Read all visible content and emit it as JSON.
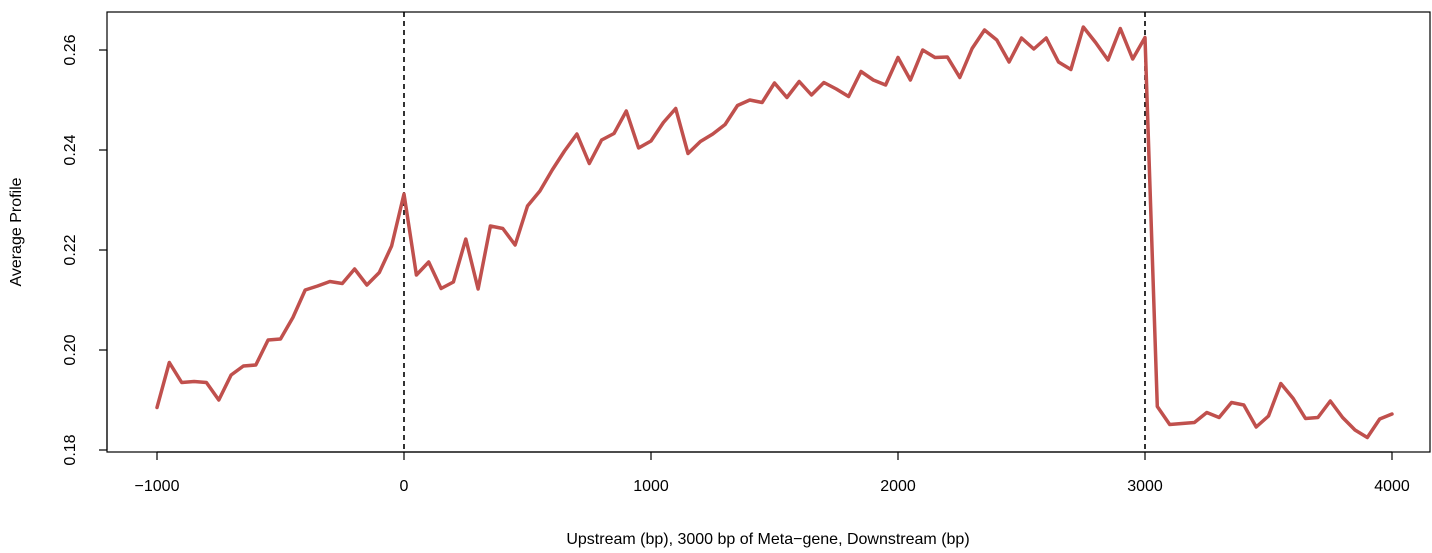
{
  "chart_data": {
    "type": "line",
    "xlabel": "Upstream (bp), 3000 bp of Meta−gene, Downstream (bp)",
    "ylabel": "Average Profile",
    "xlim": [
      -1000,
      4000
    ],
    "ylim": [
      0.18,
      0.26
    ],
    "x_ticks": [
      -1000,
      0,
      1000,
      2000,
      3000,
      4000
    ],
    "x_tick_labels": [
      "−1000",
      "0",
      "1000",
      "2000",
      "3000",
      "4000"
    ],
    "y_ticks": [
      0.18,
      0.2,
      0.22,
      0.24,
      0.26
    ],
    "y_tick_labels": [
      "0.18",
      "0.20",
      "0.22",
      "0.24",
      "0.26"
    ],
    "vlines": [
      0,
      3000
    ],
    "grid": false,
    "color": "#c0504d",
    "series": [
      {
        "x": [
          -1000,
          -950,
          -900,
          -850,
          -800,
          -750,
          -700,
          -650,
          -600,
          -550,
          -500,
          -450,
          -400,
          -350,
          -300,
          -250,
          -200,
          -150,
          -100,
          -50,
          0,
          50,
          100,
          150,
          200,
          250,
          300,
          350,
          400,
          450,
          500,
          550,
          600,
          650,
          700,
          750,
          800,
          850,
          900,
          950,
          1000,
          1050,
          1100,
          1150,
          1200,
          1250,
          1300,
          1350,
          1400,
          1450,
          1500,
          1550,
          1600,
          1650,
          1700,
          1750,
          1800,
          1850,
          1900,
          1950,
          2000,
          2050,
          2100,
          2150,
          2200,
          2250,
          2300,
          2350,
          2400,
          2450,
          2500,
          2550,
          2600,
          2650,
          2700,
          2750,
          2800,
          2850,
          2900,
          2950,
          3000,
          3050,
          3100,
          3150,
          3200,
          3250,
          3300,
          3350,
          3400,
          3450,
          3500,
          3550,
          3600,
          3650,
          3700,
          3750,
          3800,
          3850,
          3900,
          3950,
          4000
        ],
        "y": [
          0.1885,
          0.1975,
          0.1935,
          0.1937,
          0.1935,
          0.19,
          0.195,
          0.1968,
          0.197,
          0.202,
          0.2022,
          0.2065,
          0.212,
          0.2128,
          0.2137,
          0.2133,
          0.2162,
          0.213,
          0.2155,
          0.2208,
          0.2312,
          0.215,
          0.2176,
          0.2123,
          0.2136,
          0.2222,
          0.2122,
          0.2248,
          0.2243,
          0.221,
          0.2288,
          0.2318,
          0.236,
          0.2398,
          0.2432,
          0.2373,
          0.242,
          0.2433,
          0.2478,
          0.2404,
          0.2418,
          0.2455,
          0.2483,
          0.2393,
          0.2417,
          0.2432,
          0.2451,
          0.2489,
          0.25,
          0.2495,
          0.2534,
          0.2505,
          0.2537,
          0.251,
          0.2535,
          0.2522,
          0.2507,
          0.2557,
          0.254,
          0.253,
          0.2585,
          0.254,
          0.26,
          0.2585,
          0.2586,
          0.2545,
          0.2603,
          0.264,
          0.262,
          0.2576,
          0.2624,
          0.2602,
          0.2624,
          0.2576,
          0.2561,
          0.2646,
          0.2615,
          0.258,
          0.2643,
          0.2582,
          0.2625,
          0.1887,
          0.1851,
          0.1853,
          0.1855,
          0.1875,
          0.1865,
          0.1895,
          0.189,
          0.1846,
          0.1868,
          0.1933,
          0.1903,
          0.1863,
          0.1865,
          0.1898,
          0.1865,
          0.184,
          0.1825,
          0.1862,
          0.1872
        ]
      }
    ]
  }
}
